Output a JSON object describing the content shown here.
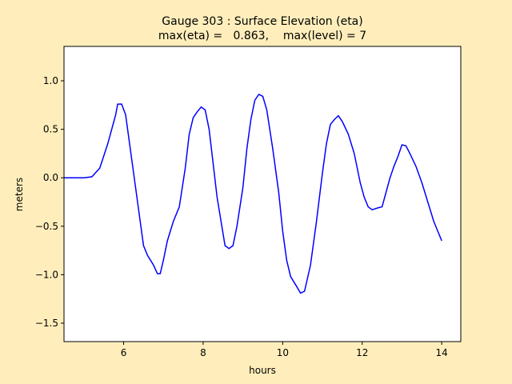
{
  "chart_data": {
    "type": "line",
    "title": "Gauge 303 : Surface Elevation (eta)",
    "subtitle": "max(eta) =   0.863,    max(level) = 7",
    "xlabel": "hours",
    "ylabel": "meters",
    "color": "#0000ff",
    "x": [
      4.5,
      5.0,
      5.2,
      5.4,
      5.6,
      5.8,
      5.85,
      5.95,
      6.05,
      6.2,
      6.4,
      6.5,
      6.6,
      6.75,
      6.85,
      6.92,
      7.0,
      7.1,
      7.25,
      7.4,
      7.55,
      7.65,
      7.75,
      7.85,
      7.95,
      8.05,
      8.15,
      8.25,
      8.35,
      8.45,
      8.55,
      8.65,
      8.75,
      8.85,
      9.0,
      9.1,
      9.2,
      9.3,
      9.4,
      9.5,
      9.6,
      9.75,
      9.9,
      10.0,
      10.1,
      10.2,
      10.35,
      10.45,
      10.55,
      10.7,
      10.85,
      11.0,
      11.1,
      11.2,
      11.3,
      11.4,
      11.5,
      11.65,
      11.8,
      11.95,
      12.05,
      12.15,
      12.25,
      12.4,
      12.5,
      12.6,
      12.7,
      12.8,
      12.9,
      13.0,
      13.1,
      13.2,
      13.35,
      13.5,
      13.65,
      13.8,
      13.9,
      14.0
    ],
    "values": [
      0,
      0,
      0.01,
      0.1,
      0.35,
      0.65,
      0.76,
      0.76,
      0.65,
      0.2,
      -0.4,
      -0.7,
      -0.8,
      -0.9,
      -0.99,
      -0.99,
      -0.85,
      -0.65,
      -0.45,
      -0.3,
      0.1,
      0.45,
      0.62,
      0.68,
      0.73,
      0.7,
      0.5,
      0.15,
      -0.2,
      -0.45,
      -0.7,
      -0.73,
      -0.7,
      -0.5,
      -0.1,
      0.3,
      0.6,
      0.8,
      0.86,
      0.84,
      0.7,
      0.3,
      -0.15,
      -0.55,
      -0.85,
      -1.02,
      -1.12,
      -1.19,
      -1.17,
      -0.9,
      -0.45,
      0.05,
      0.35,
      0.55,
      0.6,
      0.64,
      0.58,
      0.45,
      0.25,
      -0.05,
      -0.2,
      -0.3,
      -0.33,
      -0.31,
      -0.3,
      -0.15,
      0,
      0.12,
      0.22,
      0.34,
      0.33,
      0.25,
      0.12,
      -0.05,
      -0.25,
      -0.45,
      -0.55,
      -0.65
    ],
    "xlim": [
      4.5,
      14.48
    ],
    "xticks": [
      6,
      8,
      10,
      12,
      14
    ],
    "ylim": [
      -1.69,
      1.355
    ],
    "yticks": [
      {
        "value": -1.5,
        "label": "−1.5"
      },
      {
        "value": -1.0,
        "label": "−1.0"
      },
      {
        "value": -0.5,
        "label": "−0.5"
      },
      {
        "value": 0,
        "label": "0.0"
      },
      {
        "value": 0.5,
        "label": "0.5"
      },
      {
        "value": 1.0,
        "label": "1.0"
      }
    ]
  }
}
